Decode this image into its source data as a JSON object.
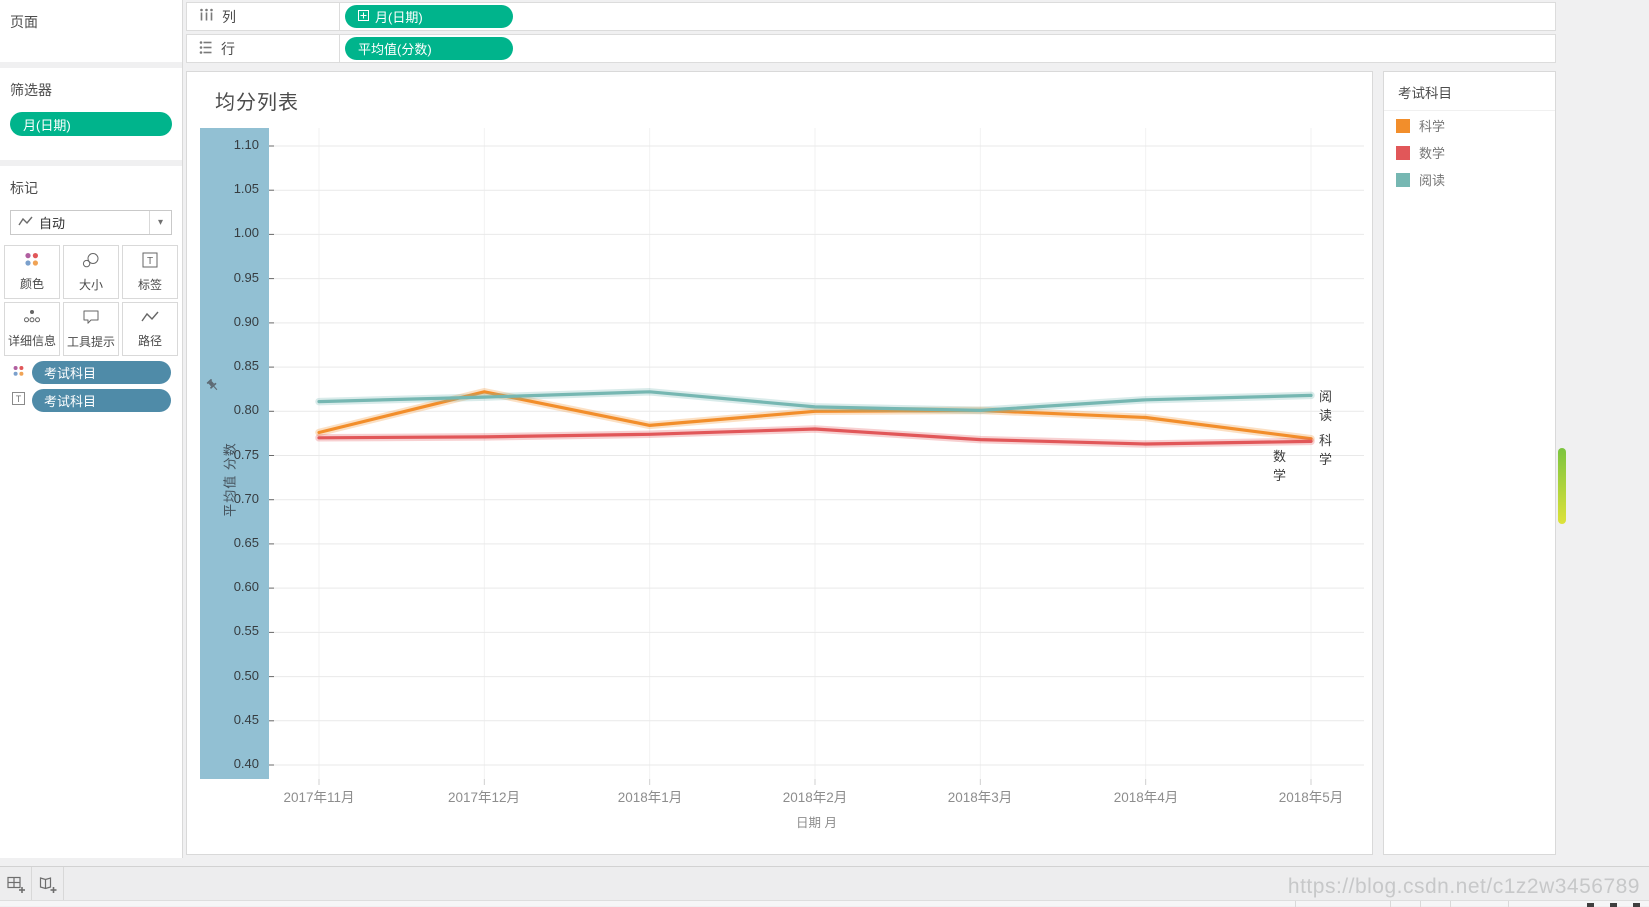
{
  "sidebar": {
    "pages": {
      "title": "页面"
    },
    "filters": {
      "title": "筛选器",
      "pills": [
        {
          "label": "月(日期)"
        }
      ]
    },
    "marks": {
      "title": "标记",
      "mark_type": "自动",
      "buttons": [
        {
          "label": "颜色"
        },
        {
          "label": "大小"
        },
        {
          "label": "标签"
        },
        {
          "label": "详细信息"
        },
        {
          "label": "工具提示"
        },
        {
          "label": "路径"
        }
      ],
      "pills": [
        {
          "label": "考试科目",
          "role": "color"
        },
        {
          "label": "考试科目",
          "role": "label"
        }
      ]
    }
  },
  "shelves": {
    "columns": {
      "label": "列",
      "pill": "月(日期)"
    },
    "rows": {
      "label": "行",
      "pill": "平均值(分数)"
    }
  },
  "chart_data": {
    "type": "line",
    "title": "均分列表",
    "x": [
      "2017年11月",
      "2017年12月",
      "2018年1月",
      "2018年2月",
      "2018年3月",
      "2018年4月",
      "2018年5月"
    ],
    "xlabel": "日期 月",
    "ylabel": "平均值 分数",
    "ylim": [
      0.4,
      1.1
    ],
    "ytick_step": 0.05,
    "grid": true,
    "legend_position": "right",
    "series": [
      {
        "name": "科学",
        "color": "#F28E2B",
        "values": [
          0.776,
          0.822,
          0.784,
          0.8,
          0.801,
          0.793,
          0.769
        ]
      },
      {
        "name": "数学",
        "color": "#E15759",
        "values": [
          0.77,
          0.771,
          0.774,
          0.78,
          0.768,
          0.763,
          0.766
        ]
      },
      {
        "name": "阅读",
        "color": "#76B7B2",
        "values": [
          0.811,
          0.816,
          0.822,
          0.805,
          0.801,
          0.813,
          0.818
        ]
      }
    ]
  },
  "legend": {
    "title": "考试科目",
    "items": [
      {
        "label": "科学",
        "color": "#F28E2B"
      },
      {
        "label": "数学",
        "color": "#E15759"
      },
      {
        "label": "阅读",
        "color": "#76B7B2"
      }
    ]
  },
  "statusbar": {
    "watermark": "https://blog.csdn.net/c1z2w3456789"
  },
  "colors": {
    "pill_green": "#00B48C",
    "pill_blue": "#4F8BA8",
    "axis_highlight": "#92C0D3"
  }
}
